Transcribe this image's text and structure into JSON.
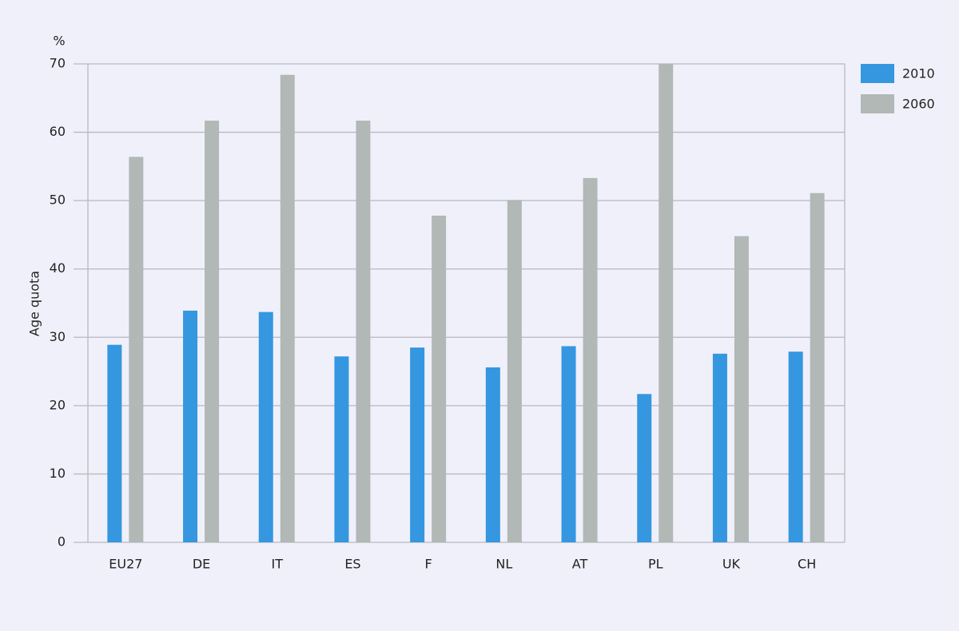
{
  "chart_data": {
    "type": "bar",
    "unit": "%",
    "y_label": "Age quota",
    "categories": [
      "EU27",
      "DE",
      "IT",
      "ES",
      "F",
      "NL",
      "AT",
      "PL",
      "UK",
      "CH"
    ],
    "series": [
      {
        "name": "2010",
        "color": "#3497df",
        "values": [
          28.9,
          33.9,
          33.7,
          27.2,
          28.5,
          25.6,
          28.7,
          21.7,
          27.6,
          27.9
        ]
      },
      {
        "name": "2060",
        "color": "#b1b8b5",
        "values": [
          56.4,
          61.7,
          68.4,
          61.7,
          47.8,
          50.1,
          53.3,
          70,
          44.8,
          51.1
        ]
      }
    ],
    "ylim": [
      0,
      70
    ],
    "yticks": [
      0,
      10,
      20,
      30,
      40,
      50,
      60,
      70
    ],
    "grid": true,
    "legend": "right-top"
  }
}
